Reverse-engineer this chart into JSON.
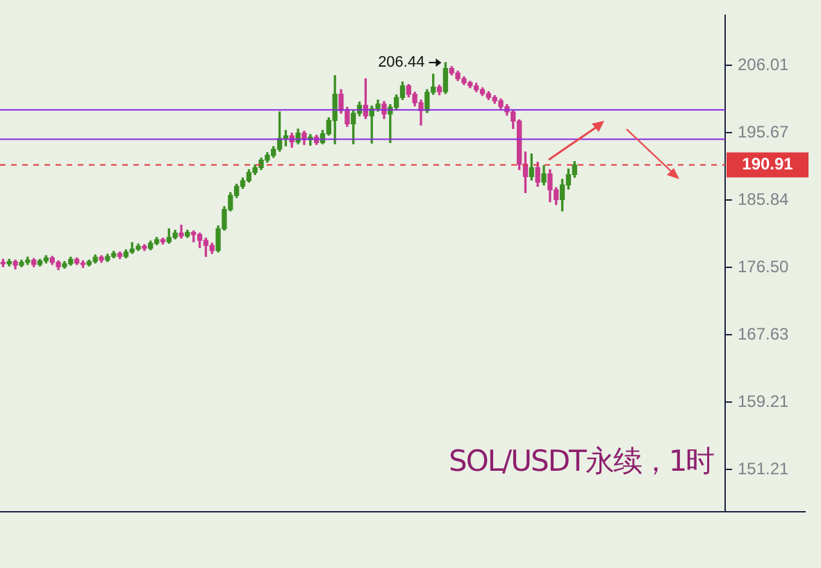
{
  "chart_data": {
    "type": "candlestick",
    "title": "SOL/USDT永续，1时",
    "categories": [
      null,
      null,
      null,
      null,
      null,
      null,
      null,
      null,
      null,
      null,
      null,
      null,
      null,
      null,
      null,
      null,
      null,
      null,
      null,
      null,
      null,
      null,
      null,
      null,
      null,
      null,
      null,
      null,
      null,
      null,
      null,
      null,
      null,
      null,
      null,
      null,
      null,
      null,
      null,
      null,
      null,
      null,
      null,
      null,
      null,
      null,
      null,
      null,
      null,
      null,
      null,
      null,
      null,
      null,
      null,
      null,
      null,
      null,
      null,
      null,
      null,
      null,
      null,
      null,
      null,
      null,
      null,
      null,
      null,
      null,
      null,
      null,
      null,
      null,
      null,
      null,
      null,
      null,
      null,
      null,
      null,
      null,
      null,
      null,
      null,
      null,
      null,
      null,
      null,
      null,
      null,
      null,
      null,
      null,
      null,
      null,
      null,
      null,
      null,
      null,
      null,
      null,
      null,
      null,
      null,
      null,
      null,
      null,
      null,
      null,
      null,
      null,
      null,
      null,
      null,
      null,
      null,
      null
    ],
    "ohlc": [
      [
        177.2,
        177.6,
        176.6,
        177.0
      ],
      [
        177.0,
        177.6,
        176.7,
        177.3
      ],
      [
        177.3,
        177.5,
        176.3,
        176.8
      ],
      [
        176.8,
        177.5,
        176.6,
        177.2
      ],
      [
        177.2,
        177.9,
        176.9,
        177.5
      ],
      [
        177.5,
        177.7,
        176.6,
        176.9
      ],
      [
        176.9,
        177.6,
        176.7,
        177.4
      ],
      [
        177.4,
        178.1,
        177.1,
        177.8
      ],
      [
        177.8,
        178.0,
        176.9,
        177.2
      ],
      [
        177.2,
        177.4,
        176.2,
        176.6
      ],
      [
        176.6,
        177.3,
        176.4,
        177.0
      ],
      [
        177.0,
        177.9,
        176.8,
        177.6
      ],
      [
        177.6,
        177.8,
        176.9,
        177.1
      ],
      [
        177.1,
        177.4,
        176.5,
        176.9
      ],
      [
        176.9,
        177.5,
        176.7,
        177.3
      ],
      [
        177.3,
        178.2,
        177.1,
        177.9
      ],
      [
        177.9,
        178.1,
        177.2,
        177.5
      ],
      [
        177.5,
        178.3,
        177.3,
        178.0
      ],
      [
        178.0,
        178.7,
        177.8,
        178.4
      ],
      [
        178.4,
        178.6,
        177.7,
        178.0
      ],
      [
        178.0,
        178.9,
        177.8,
        178.6
      ],
      [
        178.6,
        179.9,
        178.4,
        179.0
      ],
      [
        179.0,
        179.7,
        178.8,
        179.4
      ],
      [
        179.4,
        179.6,
        178.8,
        179.1
      ],
      [
        179.1,
        180.1,
        178.9,
        179.8
      ],
      [
        179.8,
        180.6,
        179.6,
        180.3
      ],
      [
        180.3,
        180.5,
        179.7,
        180.0
      ],
      [
        180.0,
        181.8,
        179.8,
        180.6
      ],
      [
        180.6,
        181.6,
        180.4,
        181.2
      ],
      [
        181.2,
        182.3,
        180.5,
        180.8
      ],
      [
        180.8,
        181.6,
        180.6,
        181.3
      ],
      [
        181.3,
        181.5,
        180.0,
        181.0
      ],
      [
        181.0,
        181.2,
        179.2,
        180.2
      ],
      [
        180.2,
        180.5,
        178.0,
        179.5
      ],
      [
        179.5,
        179.8,
        178.4,
        178.8
      ],
      [
        178.8,
        182.2,
        178.6,
        181.8
      ],
      [
        181.8,
        184.9,
        181.6,
        184.5
      ],
      [
        184.5,
        186.9,
        184.3,
        186.5
      ],
      [
        186.5,
        188.1,
        186.2,
        187.8
      ],
      [
        187.8,
        189.0,
        187.5,
        188.6
      ],
      [
        188.6,
        190.2,
        188.4,
        189.8
      ],
      [
        189.8,
        190.9,
        189.5,
        190.5
      ],
      [
        190.5,
        191.9,
        190.2,
        191.6
      ],
      [
        191.6,
        192.7,
        191.3,
        192.3
      ],
      [
        192.3,
        193.6,
        192.0,
        193.2
      ],
      [
        193.2,
        198.8,
        192.9,
        194.8
      ],
      [
        194.8,
        196.0,
        193.7,
        195.2
      ],
      [
        195.2,
        195.6,
        193.5,
        194.3
      ],
      [
        194.3,
        196.2,
        194.0,
        195.6
      ],
      [
        195.6,
        195.9,
        193.9,
        194.6
      ],
      [
        194.6,
        195.4,
        193.8,
        195.0
      ],
      [
        195.0,
        195.3,
        193.9,
        194.2
      ],
      [
        194.2,
        196.0,
        194.0,
        195.5
      ],
      [
        195.5,
        197.9,
        195.3,
        197.5
      ],
      [
        197.5,
        204.4,
        194.0,
        201.5
      ],
      [
        201.5,
        202.2,
        198.6,
        199.0
      ],
      [
        199.0,
        199.5,
        196.6,
        197.0
      ],
      [
        197.0,
        199.0,
        194.0,
        198.6
      ],
      [
        198.6,
        200.3,
        198.2,
        199.8
      ],
      [
        199.8,
        203.9,
        197.8,
        198.2
      ],
      [
        198.2,
        199.7,
        194.1,
        199.3
      ],
      [
        199.3,
        200.6,
        198.9,
        200.0
      ],
      [
        200.0,
        200.4,
        197.8,
        198.5
      ],
      [
        198.5,
        199.9,
        194.2,
        199.5
      ],
      [
        199.5,
        201.4,
        199.2,
        201.0
      ],
      [
        201.0,
        203.4,
        200.7,
        202.8
      ],
      [
        202.8,
        203.0,
        201.1,
        201.5
      ],
      [
        201.5,
        201.8,
        199.7,
        200.2
      ],
      [
        200.2,
        200.6,
        196.8,
        199.0
      ],
      [
        199.0,
        202.2,
        198.7,
        201.8
      ],
      [
        201.8,
        204.6,
        201.5,
        202.6
      ],
      [
        202.6,
        202.9,
        201.4,
        201.9
      ],
      [
        201.9,
        206.44,
        201.6,
        205.5
      ],
      [
        205.5,
        205.8,
        204.5,
        204.8
      ],
      [
        204.8,
        205.1,
        203.6,
        203.9
      ],
      [
        203.9,
        204.2,
        203.0,
        203.3
      ],
      [
        203.3,
        203.5,
        202.5,
        202.8
      ],
      [
        202.8,
        203.2,
        201.9,
        202.2
      ],
      [
        202.2,
        202.5,
        201.3,
        201.6
      ],
      [
        201.6,
        201.9,
        200.7,
        201.0
      ],
      [
        201.0,
        201.3,
        200.1,
        200.5
      ],
      [
        200.5,
        200.8,
        199.2,
        199.6
      ],
      [
        199.6,
        199.9,
        198.3,
        198.8
      ],
      [
        198.8,
        199.1,
        196.3,
        197.4
      ],
      [
        197.4,
        197.6,
        190.2,
        191.0
      ],
      [
        191.0,
        192.8,
        186.9,
        189.2
      ],
      [
        189.2,
        192.5,
        188.7,
        190.5
      ],
      [
        190.5,
        191.3,
        187.8,
        188.4
      ],
      [
        188.4,
        190.8,
        188.0,
        189.6
      ],
      [
        189.6,
        190.2,
        185.6,
        187.3
      ],
      [
        187.3,
        187.6,
        185.2,
        185.9
      ],
      [
        185.9,
        188.8,
        184.3,
        188.0
      ],
      [
        188.0,
        190.3,
        187.4,
        189.5
      ],
      [
        189.5,
        191.4,
        189.1,
        190.91
      ],
      null,
      null,
      null,
      null,
      null,
      null,
      null,
      null,
      null,
      null,
      null,
      null,
      null,
      null,
      null,
      null,
      null,
      null,
      null,
      null,
      null,
      null,
      null,
      null
    ],
    "colors": [
      "#c93a92",
      "#3b8f23",
      "#c93a92",
      "#3b8f23",
      "#3b8f23",
      "#c93a92",
      "#3b8f23",
      "#3b8f23",
      "#c93a92",
      "#c93a92",
      "#3b8f23",
      "#3b8f23",
      "#c93a92",
      "#c93a92",
      "#3b8f23",
      "#3b8f23",
      "#c93a92",
      "#3b8f23",
      "#3b8f23",
      "#c93a92",
      "#3b8f23",
      "#3b8f23",
      "#3b8f23",
      "#c93a92",
      "#3b8f23",
      "#3b8f23",
      "#c93a92",
      "#3b8f23",
      "#3b8f23",
      "#c93a92",
      "#3b8f23",
      "#c93a92",
      "#c93a92",
      "#c93a92",
      "#c93a92",
      "#3b8f23",
      "#3b8f23",
      "#3b8f23",
      "#3b8f23",
      "#3b8f23",
      "#3b8f23",
      "#3b8f23",
      "#3b8f23",
      "#3b8f23",
      "#3b8f23",
      "#3b8f23",
      "#3b8f23",
      "#c93a92",
      "#3b8f23",
      "#c93a92",
      "#3b8f23",
      "#c93a92",
      "#3b8f23",
      "#3b8f23",
      "#3b8f23",
      "#c93a92",
      "#c93a92",
      "#3b8f23",
      "#3b8f23",
      "#c93a92",
      "#3b8f23",
      "#3b8f23",
      "#c93a92",
      "#3b8f23",
      "#3b8f23",
      "#3b8f23",
      "#c93a92",
      "#c93a92",
      "#c93a92",
      "#3b8f23",
      "#3b8f23",
      "#c93a92",
      "#3b8f23",
      "#c93a92",
      "#c93a92",
      "#c93a92",
      "#c93a92",
      "#c93a92",
      "#c93a92",
      "#c93a92",
      "#c93a92",
      "#c93a92",
      "#c93a92",
      "#c93a92",
      "#c93a92",
      "#c93a92",
      "#3b8f23",
      "#c93a92",
      "#3b8f23",
      "#c93a92",
      "#c93a92",
      "#3b8f23",
      "#3b8f23",
      "#3b8f23",
      null,
      null,
      null,
      null,
      null,
      null,
      null,
      null,
      null,
      null,
      null,
      null,
      null,
      null,
      null,
      null,
      null,
      null,
      null,
      null,
      null,
      null,
      null,
      null
    ],
    "log": true,
    "ylim": [
      146.5,
      214
    ],
    "yticks": [
      151.21,
      159.21,
      167.63,
      {
        "value": 176.5,
        "label": "176.50"
      },
      185.84,
      195.67,
      206.01
    ],
    "tick_labels": "y",
    "ref_lines": [
      {
        "axis": "y",
        "value": 190.91,
        "label": "190.91",
        "color": "#e0393e",
        "line_style": "dashed"
      },
      {
        "axis": "y",
        "value": 199.1,
        "color": "#8a2be2"
      },
      {
        "axis": "y",
        "value": 194.7,
        "color": "#8a2be2"
      }
    ],
    "annotations": [
      "206.44"
    ]
  }
}
